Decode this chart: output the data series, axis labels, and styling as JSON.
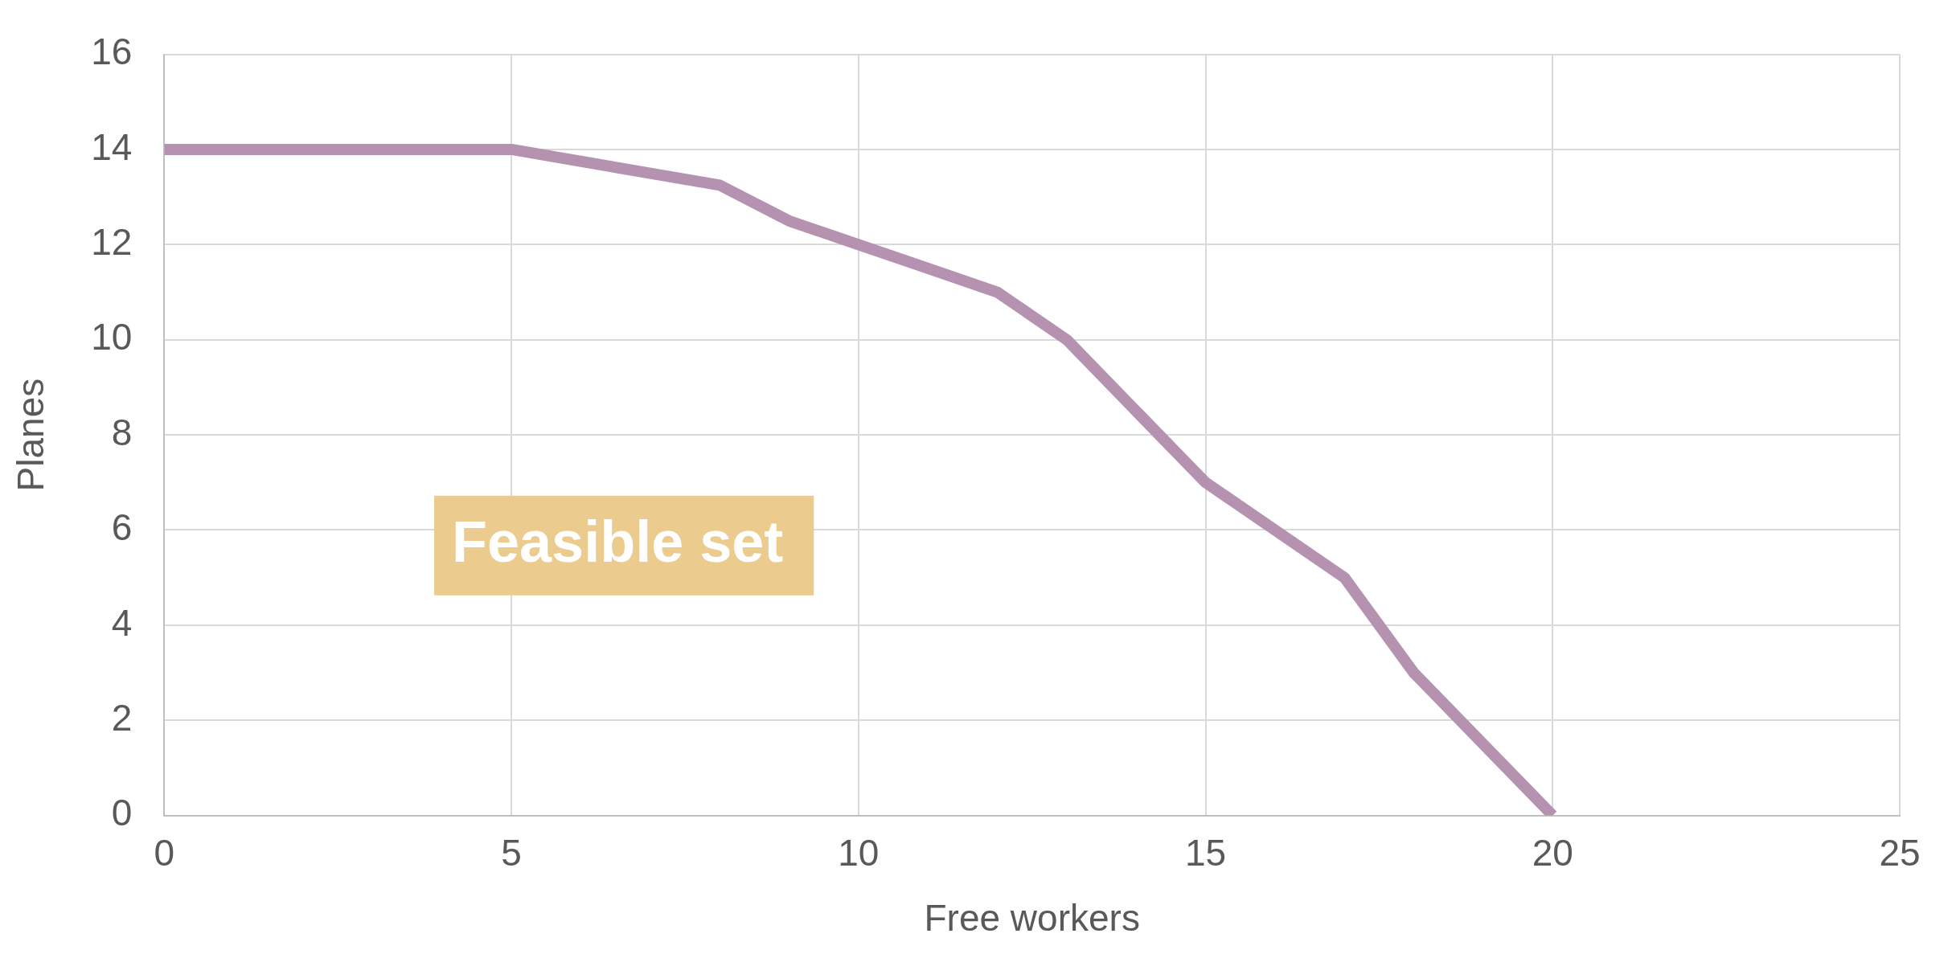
{
  "chart_data": {
    "type": "line",
    "xlabel": "Free workers",
    "ylabel": "Planes",
    "x": [
      0,
      5,
      8,
      9,
      10,
      11,
      12,
      13,
      14,
      15,
      16,
      17,
      18,
      19,
      20
    ],
    "series": [
      {
        "color": "#b592b0",
        "values": [
          14,
          14,
          13.25,
          12.5,
          12,
          11.5,
          11,
          10,
          8.5,
          7,
          6,
          5,
          3,
          1.5,
          0
        ]
      }
    ],
    "xlim": [
      0,
      25
    ],
    "xticks": [
      0,
      5,
      10,
      15,
      20,
      25
    ],
    "ylim": [
      0,
      16
    ],
    "yticks": [
      0,
      2,
      4,
      6,
      8,
      10,
      12,
      14,
      16
    ],
    "grid": true,
    "legend": false,
    "marker": "none",
    "line_style": "solid",
    "annotations": [
      "Feasible set"
    ]
  }
}
